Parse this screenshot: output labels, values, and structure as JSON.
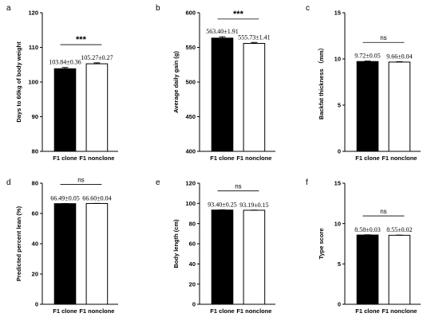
{
  "chart_data": [
    {
      "type": "bar",
      "panel": "a",
      "categories": [
        "F1 clone",
        "F1 nonclone"
      ],
      "values": [
        103.84,
        105.27
      ],
      "errors": [
        0.36,
        0.27
      ],
      "value_labels": [
        "103.84±0.36",
        "105.27±0.27"
      ],
      "ylabel": "Days to 60kg of body weight",
      "ylim": [
        80,
        120
      ],
      "yticks": [
        "80",
        "90",
        "100",
        "110",
        "120"
      ],
      "significance": "***",
      "colors": [
        "#000000",
        "#ffffff"
      ]
    },
    {
      "type": "bar",
      "panel": "b",
      "categories": [
        "F1 clone",
        "F1 nonclone"
      ],
      "values": [
        563.4,
        555.73
      ],
      "errors": [
        1.91,
        1.41
      ],
      "value_labels": [
        "563.40±1.91",
        "555.73±1.41"
      ],
      "ylabel": "Average daily gain (g)",
      "ylim": [
        400,
        600
      ],
      "yticks": [
        "400",
        "450",
        "500",
        "550",
        "600"
      ],
      "significance": "***",
      "colors": [
        "#000000",
        "#ffffff"
      ]
    },
    {
      "type": "bar",
      "panel": "c",
      "categories": [
        "F1 clone",
        "F1 nonclone"
      ],
      "values": [
        9.72,
        9.66
      ],
      "errors": [
        0.05,
        0.04
      ],
      "value_labels": [
        "9.72±0.05",
        "9.66±0.04"
      ],
      "ylabel": "Backfat thickness （mm）",
      "ylim": [
        0,
        15
      ],
      "yticks": [
        "0",
        "5",
        "10",
        "15"
      ],
      "significance": "ns",
      "colors": [
        "#000000",
        "#ffffff"
      ]
    },
    {
      "type": "bar",
      "panel": "d",
      "categories": [
        "F1 clone",
        "F1 nonclone"
      ],
      "values": [
        66.49,
        66.6
      ],
      "errors": [
        0.05,
        0.04
      ],
      "value_labels": [
        "66.49±0.05",
        "66.60±0.04"
      ],
      "ylabel": "Predicted percent lean (%)",
      "ylim": [
        0,
        80
      ],
      "yticks": [
        "0",
        "20",
        "40",
        "60",
        "80"
      ],
      "significance": "ns",
      "colors": [
        "#000000",
        "#ffffff"
      ]
    },
    {
      "type": "bar",
      "panel": "e",
      "categories": [
        "F1 clone",
        "F1 nonclone"
      ],
      "values": [
        93.4,
        93.19
      ],
      "errors": [
        0.25,
        0.15
      ],
      "value_labels": [
        "93.40±0.25",
        "93.19±0.15"
      ],
      "ylabel": "Body length (cm)",
      "ylim": [
        0,
        120
      ],
      "yticks": [
        "0",
        "20",
        "40",
        "60",
        "80",
        "100",
        "120"
      ],
      "significance": "ns",
      "colors": [
        "#000000",
        "#ffffff"
      ]
    },
    {
      "type": "bar",
      "panel": "f",
      "categories": [
        "F1 clone",
        "F1 nonclone"
      ],
      "values": [
        8.58,
        8.55
      ],
      "errors": [
        0.03,
        0.02
      ],
      "value_labels": [
        "8.58±0.03",
        "8.55±0.02"
      ],
      "ylabel": "Type score",
      "ylim": [
        0,
        15
      ],
      "yticks": [
        "0",
        "5",
        "10",
        "15"
      ],
      "significance": "ns",
      "colors": [
        "#000000",
        "#ffffff"
      ]
    }
  ]
}
